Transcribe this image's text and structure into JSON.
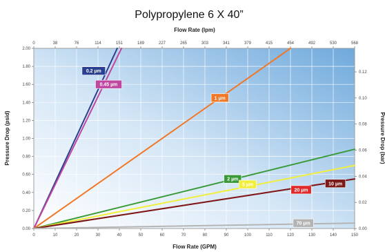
{
  "chart_data": {
    "type": "line",
    "title": "Polypropylene 6 X 40”",
    "xlabel": "Flow Rate (GPM)",
    "x2label": "Flow Rate (lpm)",
    "ylabel": "Pressure Drop (psid)",
    "y2label": "Pressure Drop (bar)",
    "xlim": [
      0,
      150
    ],
    "ylim": [
      0,
      2.0
    ],
    "y2lim": [
      0,
      0.138
    ],
    "grid": true,
    "x_ticks": [
      "0",
      "10",
      "20",
      "30",
      "40",
      "50",
      "60",
      "70",
      "80",
      "90",
      "100",
      "110",
      "120",
      "130",
      "140",
      "150"
    ],
    "x2_ticks": [
      "0",
      "38",
      "76",
      "114",
      "151",
      "189",
      "227",
      "265",
      "303",
      "341",
      "379",
      "415",
      "454",
      "492",
      "530",
      "568"
    ],
    "y_ticks": [
      "0.00",
      "0.20",
      "0.40",
      "0.60",
      "0.80",
      "1.00",
      "1.20",
      "1.40",
      "1.60",
      "1.80",
      "2.00"
    ],
    "y2_ticks": [
      {
        "label": "0.00",
        "value": 0.0
      },
      {
        "label": "0.02",
        "value": 0.02
      },
      {
        "label": "0.04",
        "value": 0.04
      },
      {
        "label": "0.06",
        "value": 0.06
      },
      {
        "label": "0.08",
        "value": 0.08
      },
      {
        "label": "0.10",
        "value": 0.1
      },
      {
        "label": "0.12",
        "value": 0.12
      }
    ],
    "series": [
      {
        "name": "0.2 µm",
        "color": "#2a3f8f",
        "x": [
          0,
          39
        ],
        "y": [
          0,
          2.0
        ],
        "label_at": [
          28,
          1.75
        ]
      },
      {
        "name": "0.45 µm",
        "color": "#c0479f",
        "x": [
          0,
          41
        ],
        "y": [
          0,
          2.0
        ],
        "label_at": [
          35,
          1.6
        ]
      },
      {
        "name": "1 µm",
        "color": "#f07828",
        "x": [
          0,
          120
        ],
        "y": [
          0,
          2.0
        ],
        "label_at": [
          87,
          1.45
        ]
      },
      {
        "name": "2 µm",
        "color": "#3a9a3a",
        "x": [
          0,
          150
        ],
        "y": [
          0,
          0.88
        ],
        "label_at": [
          93,
          0.55
        ]
      },
      {
        "name": "5 µm",
        "color": "#f2ef3a",
        "x": [
          0,
          150
        ],
        "y": [
          0,
          0.7
        ],
        "label_at": [
          100,
          0.49
        ]
      },
      {
        "name": "20 µm",
        "color": "#e02929",
        "x": [
          0,
          150
        ],
        "y": [
          0,
          0.55
        ],
        "label_at": [
          125,
          0.43
        ]
      },
      {
        "name": "10 µm",
        "color": "#7a1a1a",
        "x": [
          0,
          150
        ],
        "y": [
          0,
          0.55
        ],
        "label_at": [
          141,
          0.5
        ]
      },
      {
        "name": "70 µm",
        "color": "#b4b4b4",
        "x": [
          0,
          150
        ],
        "y": [
          0,
          0.06
        ],
        "label_at": [
          126,
          0.06
        ]
      }
    ]
  }
}
